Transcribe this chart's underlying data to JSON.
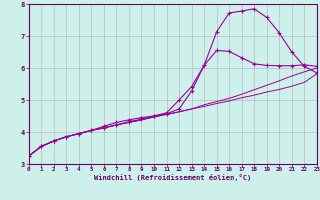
{
  "xlabel": "Windchill (Refroidissement éolien,°C)",
  "bg_color": "#cef0ea",
  "line_color": "#990099",
  "grid_color": "#b0b0b0",
  "axis_color": "#660066",
  "spine_color": "#660066",
  "xmin": 0,
  "xmax": 23,
  "ymin": 3,
  "ymax": 8,
  "line1_x": [
    0,
    1,
    2,
    3,
    4,
    5,
    6,
    7,
    8,
    9,
    10,
    11,
    12,
    13,
    14,
    15,
    16,
    17,
    18,
    19,
    20,
    21,
    22,
    23
  ],
  "line1_y": [
    3.25,
    3.55,
    3.72,
    3.85,
    3.95,
    4.05,
    4.13,
    4.22,
    4.3,
    4.38,
    4.47,
    4.55,
    4.63,
    4.72,
    4.8,
    4.89,
    4.97,
    5.07,
    5.15,
    5.25,
    5.33,
    5.43,
    5.55,
    5.82
  ],
  "line2_x": [
    0,
    1,
    2,
    3,
    4,
    5,
    6,
    7,
    8,
    9,
    10,
    11,
    12,
    13,
    14,
    15,
    16,
    17,
    18,
    19,
    20,
    21,
    22,
    23
  ],
  "line2_y": [
    3.25,
    3.55,
    3.72,
    3.85,
    3.95,
    4.05,
    4.18,
    4.3,
    4.38,
    4.45,
    4.5,
    4.57,
    4.72,
    5.28,
    6.08,
    7.13,
    7.72,
    7.78,
    7.85,
    7.58,
    7.1,
    6.5,
    6.05,
    5.85
  ],
  "line3_x": [
    0,
    1,
    2,
    3,
    4,
    5,
    6,
    7,
    8,
    9,
    10,
    11,
    12,
    13,
    14,
    15,
    16,
    17,
    18,
    19,
    20,
    21,
    22,
    23
  ],
  "line3_y": [
    3.25,
    3.55,
    3.72,
    3.85,
    3.95,
    4.05,
    4.13,
    4.22,
    4.32,
    4.4,
    4.5,
    4.6,
    5.0,
    5.42,
    6.08,
    6.55,
    6.52,
    6.32,
    6.13,
    6.08,
    6.07,
    6.07,
    6.1,
    6.05
  ],
  "line4_x": [
    0,
    1,
    2,
    3,
    4,
    5,
    6,
    7,
    8,
    9,
    10,
    11,
    12,
    13,
    14,
    15,
    16,
    17,
    18,
    19,
    20,
    21,
    22,
    23
  ],
  "line4_y": [
    3.25,
    3.55,
    3.72,
    3.85,
    3.95,
    4.05,
    4.13,
    4.22,
    4.3,
    4.38,
    4.47,
    4.55,
    4.63,
    4.72,
    4.85,
    4.95,
    5.05,
    5.18,
    5.32,
    5.46,
    5.6,
    5.75,
    5.88,
    6.0
  ],
  "xticks": [
    0,
    1,
    2,
    3,
    4,
    5,
    6,
    7,
    8,
    9,
    10,
    11,
    12,
    13,
    14,
    15,
    16,
    17,
    18,
    19,
    20,
    21,
    22,
    23
  ],
  "yticks": [
    3,
    4,
    5,
    6,
    7,
    8
  ],
  "marker": "+",
  "markersize": 3.5,
  "markeredgewidth": 0.8,
  "linewidth_marked": 0.8,
  "linewidth_plain": 0.7
}
